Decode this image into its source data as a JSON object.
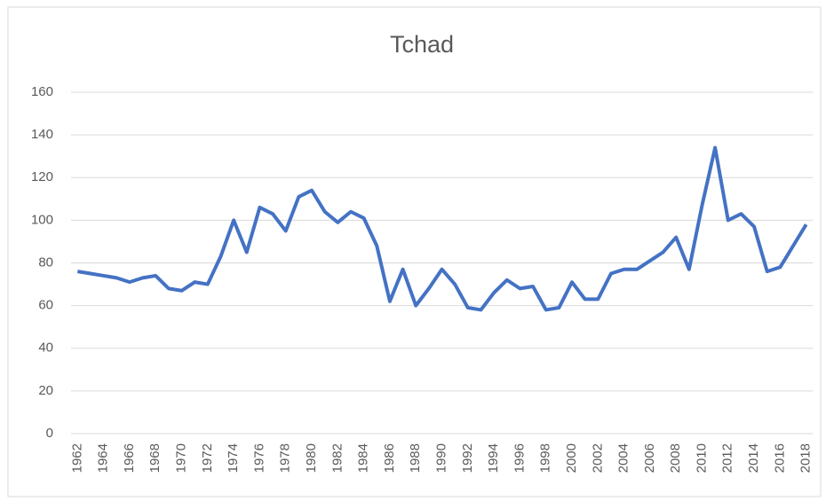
{
  "chart_data": {
    "type": "line",
    "title": "Tchad",
    "categories": [
      "1962",
      null,
      "1964",
      null,
      "1966",
      null,
      "1968",
      null,
      "1970",
      null,
      "1972",
      null,
      "1974",
      null,
      "1976",
      null,
      "1978",
      null,
      "1980",
      null,
      "1982",
      null,
      "1984",
      null,
      "1986",
      null,
      "1988",
      null,
      "1990",
      null,
      "1992",
      null,
      "1994",
      null,
      "1996",
      null,
      "1998",
      null,
      "2000",
      null,
      "2002",
      null,
      "2004",
      null,
      "2006",
      null,
      "2008",
      null,
      "2010",
      null,
      "2012",
      null,
      "2014",
      null,
      "2016",
      null,
      "2018"
    ],
    "series": [
      {
        "color": "#4472c4",
        "values": [
          76,
          75,
          74,
          73,
          71,
          73,
          74,
          68,
          67,
          71,
          70,
          83,
          100,
          85,
          106,
          103,
          95,
          111,
          114,
          104,
          99,
          104,
          101,
          88,
          62,
          77,
          60,
          68,
          77,
          70,
          59,
          58,
          66,
          72,
          68,
          69,
          58,
          59,
          71,
          63,
          63,
          75,
          77,
          77,
          81,
          85,
          92,
          77,
          107,
          134,
          100,
          103,
          97,
          76,
          78,
          88,
          98
        ]
      }
    ],
    "ylim": [
      0,
      160
    ],
    "yticks": [
      0,
      20,
      40,
      60,
      80,
      100,
      120,
      140,
      160
    ],
    "grid": true
  }
}
